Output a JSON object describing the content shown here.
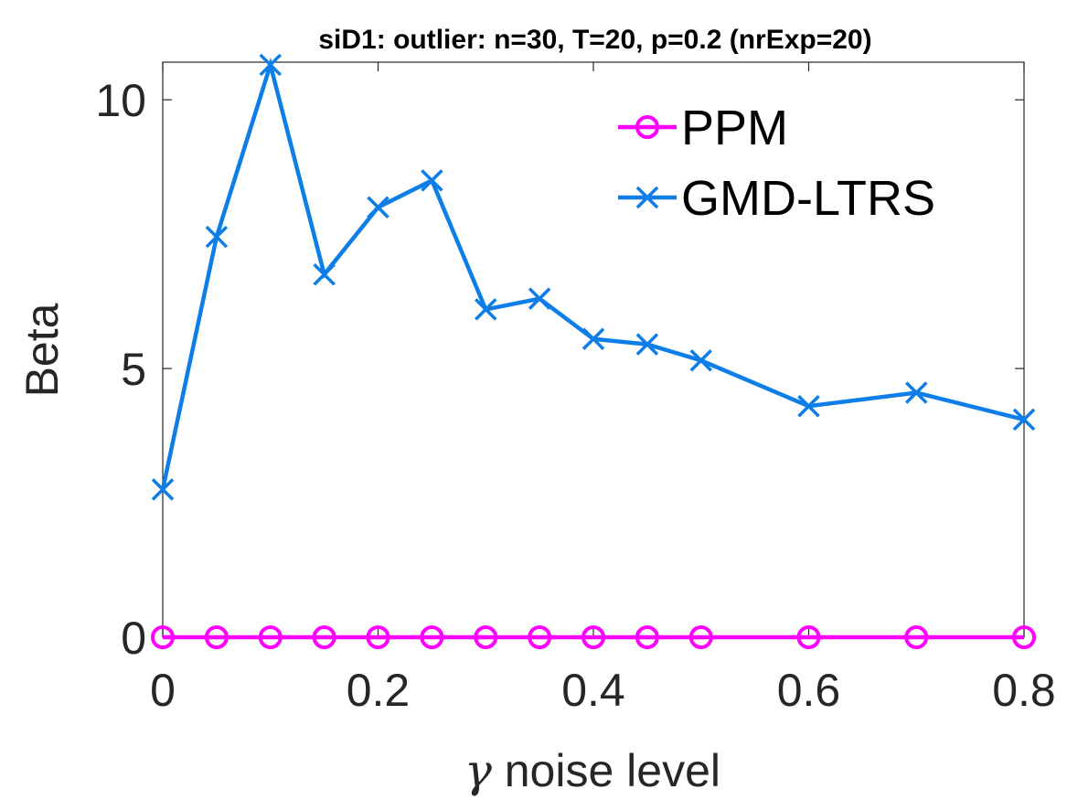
{
  "chart_data": {
    "type": "line",
    "title": "siD1: outlier: n=30, T=20, p=0.2 (nrExp=20)",
    "xlabel_symbol": "γ",
    "xlabel": " noise level",
    "ylabel": "Beta",
    "xlim": [
      0,
      0.8
    ],
    "ylim": [
      0,
      10.7
    ],
    "xticks": [
      0,
      0.2,
      0.4,
      0.6,
      0.8
    ],
    "xtick_labels": [
      "0",
      "0.2",
      "0.4",
      "0.6",
      "0.8"
    ],
    "yticks": [
      0,
      5,
      10
    ],
    "ytick_labels": [
      "0",
      "5",
      "10"
    ],
    "grid": false,
    "legend_position": "top-right",
    "x": [
      0,
      0.05,
      0.1,
      0.15,
      0.2,
      0.25,
      0.3,
      0.35,
      0.4,
      0.45,
      0.5,
      0.6,
      0.7,
      0.8
    ],
    "series": [
      {
        "name": "PPM",
        "color": "#ff00ff",
        "marker": "circle",
        "values": [
          0,
          0,
          0,
          0,
          0,
          0,
          0,
          0,
          0,
          0,
          0,
          0,
          0,
          0
        ]
      },
      {
        "name": "GMD-LTRS",
        "color": "#0d7ee8",
        "marker": "x",
        "values": [
          2.75,
          7.45,
          10.65,
          6.75,
          8.0,
          8.5,
          6.1,
          6.3,
          5.55,
          5.45,
          5.15,
          4.3,
          4.55,
          4.05
        ]
      }
    ]
  }
}
